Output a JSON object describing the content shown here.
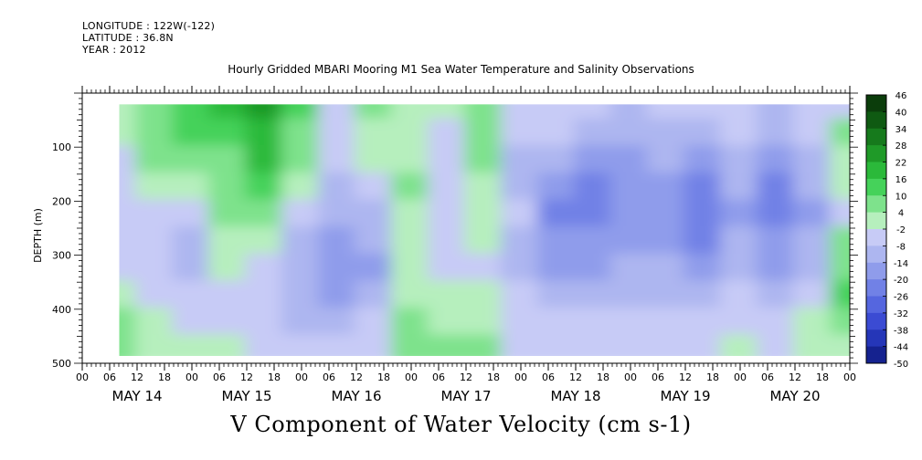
{
  "header": {
    "longitude": "LONGITUDE : 122W(-122)",
    "latitude": "LATITUDE : 36.8N",
    "year": "YEAR : 2012"
  },
  "chart_data": {
    "type": "heatmap",
    "title": "Hourly Gridded MBARI Mooring M1 Sea Water Temperature and Salinity Observations",
    "xlabel": "V Component of Water Velocity (cm s-1)",
    "ylabel": "DEPTH (m)",
    "ylim": [
      500,
      0
    ],
    "y_ticks": [
      100,
      200,
      300,
      400,
      500
    ],
    "x_hour_ticks": [
      "00",
      "06",
      "12",
      "18",
      "00",
      "06",
      "12",
      "18",
      "00",
      "06",
      "12",
      "18",
      "00",
      "06",
      "12",
      "18",
      "00",
      "06",
      "12",
      "18",
      "00",
      "06",
      "12",
      "18",
      "00",
      "06",
      "12",
      "18",
      "00"
    ],
    "x_day_labels": [
      "MAY 14",
      "MAY 15",
      "MAY 16",
      "MAY 17",
      "MAY 18",
      "MAY 19",
      "MAY 20"
    ],
    "x_range_hours": [
      0,
      168
    ],
    "data_extent": {
      "start_hour": 8,
      "end_hour": 168,
      "depth_top": 20,
      "depth_bottom": 490
    },
    "colorbar": {
      "levels": [
        46,
        40,
        34,
        28,
        22,
        16,
        10,
        4,
        -2,
        -8,
        -14,
        -20,
        -26,
        -32,
        -38,
        -44,
        -50
      ],
      "low_color": "#000066",
      "high_color": "#0b3d0b"
    },
    "depth_rows": [
      25,
      75,
      125,
      175,
      225,
      275,
      325,
      375,
      425,
      475
    ],
    "time_columns": [
      8,
      16,
      24,
      32,
      40,
      48,
      56,
      64,
      72,
      80,
      88,
      96,
      104,
      112,
      120,
      128,
      136,
      144,
      152,
      160,
      168
    ],
    "values": [
      [
        2,
        8,
        14,
        16,
        22,
        10,
        -4,
        6,
        2,
        -2,
        6,
        -6,
        -6,
        -8,
        -10,
        -8,
        -6,
        -4,
        -10,
        -6,
        -6
      ],
      [
        -2,
        6,
        10,
        14,
        20,
        6,
        -6,
        2,
        0,
        -4,
        4,
        -8,
        -8,
        -12,
        -14,
        -10,
        -10,
        -8,
        -14,
        -8,
        4
      ],
      [
        -4,
        4,
        4,
        8,
        16,
        4,
        -8,
        -2,
        2,
        -6,
        4,
        -10,
        -14,
        -18,
        -16,
        -14,
        -16,
        -10,
        -18,
        -10,
        2
      ],
      [
        -6,
        0,
        -2,
        6,
        10,
        -2,
        -12,
        -6,
        4,
        -8,
        2,
        -12,
        -20,
        -22,
        -18,
        -18,
        -22,
        -14,
        -22,
        -14,
        -2
      ],
      [
        -8,
        -4,
        -6,
        4,
        4,
        -6,
        -14,
        -10,
        2,
        -8,
        0,
        -8,
        -22,
        -24,
        -20,
        -20,
        -26,
        -16,
        -24,
        -16,
        -4
      ],
      [
        -6,
        -8,
        -10,
        2,
        -2,
        -12,
        -18,
        -14,
        0,
        -6,
        -2,
        -10,
        -20,
        -20,
        -18,
        -18,
        -22,
        -14,
        -20,
        -14,
        4
      ],
      [
        -4,
        -6,
        -12,
        -2,
        -6,
        -14,
        -20,
        -16,
        -2,
        -4,
        -4,
        -12,
        -16,
        -16,
        -14,
        -14,
        -18,
        -12,
        -16,
        -10,
        8
      ],
      [
        0,
        -4,
        -8,
        -4,
        -8,
        -12,
        -16,
        -12,
        2,
        -2,
        -2,
        -8,
        -12,
        -12,
        -10,
        -10,
        -12,
        -8,
        -12,
        -6,
        10
      ],
      [
        4,
        -2,
        -4,
        -6,
        -8,
        -10,
        -12,
        -8,
        4,
        2,
        0,
        -6,
        -8,
        -8,
        -6,
        -8,
        -8,
        -4,
        -8,
        -2,
        6
      ],
      [
        6,
        2,
        0,
        -2,
        -4,
        -6,
        -8,
        -4,
        6,
        4,
        4,
        -4,
        -4,
        -6,
        -4,
        -6,
        -6,
        -2,
        -4,
        0,
        2
      ]
    ]
  }
}
